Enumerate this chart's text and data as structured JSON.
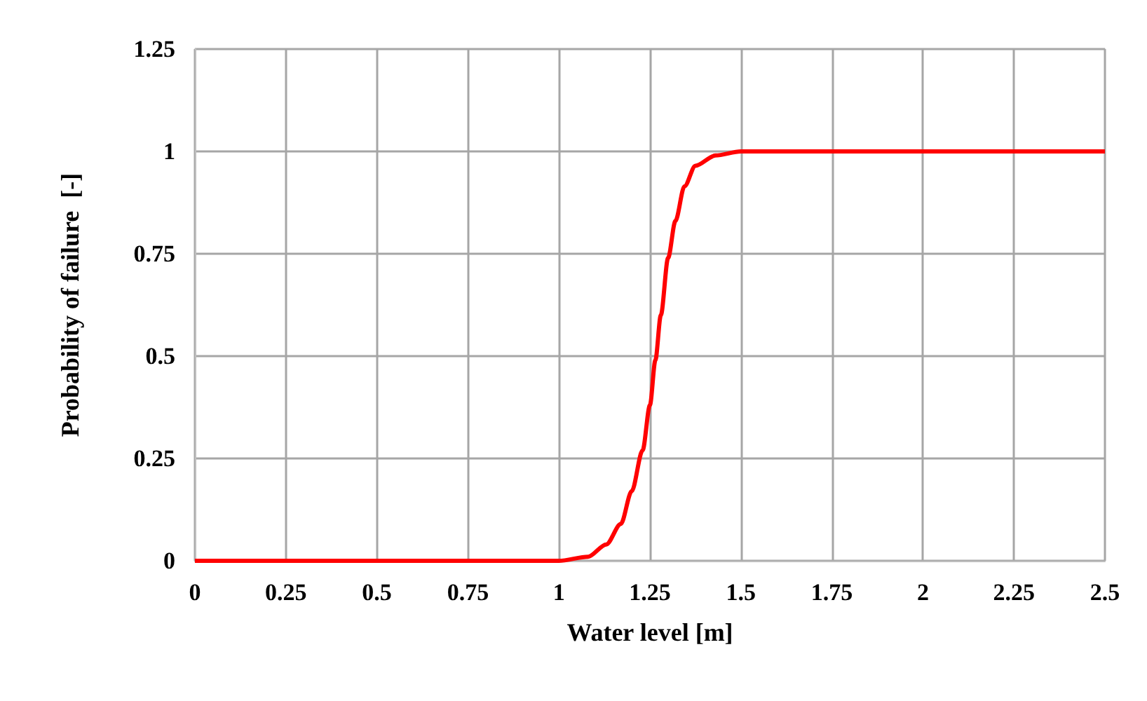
{
  "chart_data": {
    "type": "line",
    "xlabel": "Water level [m]",
    "ylabel": "Probability of failure  [-]",
    "series": [
      {
        "color": "#ff0000",
        "x": [
          0,
          1,
          1.08,
          1.13,
          1.17,
          1.2,
          1.23,
          1.25,
          1.265,
          1.28,
          1.3,
          1.32,
          1.345,
          1.375,
          1.43,
          1.5,
          2.5
        ],
        "values": [
          0,
          0,
          0.01,
          0.04,
          0.09,
          0.17,
          0.27,
          0.38,
          0.49,
          0.6,
          0.74,
          0.83,
          0.915,
          0.965,
          0.99,
          1,
          1
        ]
      }
    ],
    "xlim": [
      0,
      2.5
    ],
    "xticks": [
      0,
      0.25,
      0.5,
      0.75,
      1,
      1.25,
      1.5,
      1.75,
      2,
      2.25,
      2.5
    ],
    "ylim": [
      0,
      1.25
    ],
    "yticks": [
      0,
      0.25,
      0.5,
      0.75,
      1,
      1.25
    ],
    "grid": true,
    "marker": "none",
    "line_style": "solid"
  }
}
